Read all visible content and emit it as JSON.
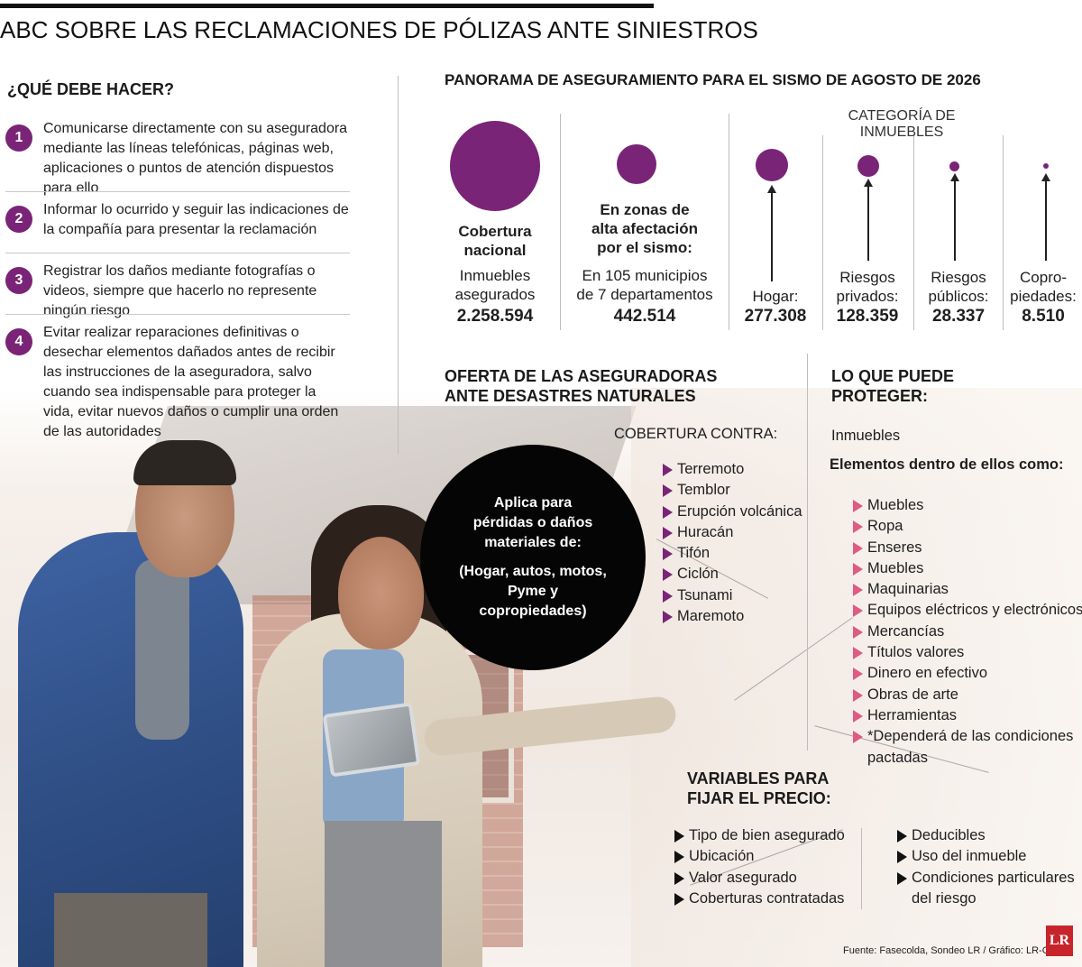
{
  "header": {
    "title": "ABC SOBRE LAS RECLAMACIONES DE PÓLIZAS ANTE SINIESTROS"
  },
  "que_hacer": {
    "title": "¿QUÉ DEBE HACER?",
    "steps": [
      {
        "num": "1",
        "text": "Comunicarse directamente con su aseguradora mediante las líneas telefónicas, páginas web, aplicaciones o puntos de atención dispuestos para ello"
      },
      {
        "num": "2",
        "text": "Informar lo ocurrido y seguir las indicaciones de la compañía para presentar la reclamación"
      },
      {
        "num": "3",
        "text": "Registrar los daños mediante fotografías o videos, siempre que hacerlo no represente ningún riesgo"
      },
      {
        "num": "4",
        "text": "Evitar realizar reparaciones definitivas o desechar elementos dañados antes de recibir las instrucciones de la aseguradora, salvo cuando sea indispensable para proteger la vida, evitar nuevos daños o cumplir una orden de las autoridades"
      }
    ]
  },
  "panorama": {
    "title": "PANORAMA DE ASEGURAMIENTO PARA EL SISMO DE AGOSTO DE 2026",
    "category_title": "CATEGORÍA DE INMUEBLES",
    "nacional": {
      "heading_1": "Cobertura",
      "heading_2": "nacional",
      "label_1": "Inmuebles",
      "label_2": "asegurados",
      "value": "2.258.594"
    },
    "zonas": {
      "heading_1": "En zonas de",
      "heading_2": "alta afectación",
      "heading_3": "por el sismo:",
      "label_1": "En 105 municipios",
      "label_2": "de 7 departamentos",
      "value": "442.514"
    },
    "categorias": [
      {
        "line_1": "",
        "line_2": "Hogar:",
        "value": "277.308",
        "amount": 277308
      },
      {
        "line_1": "Riesgos",
        "line_2": "privados:",
        "value": "128.359",
        "amount": 128359
      },
      {
        "line_1": "Riesgos",
        "line_2": "públicos:",
        "value": "28.337",
        "amount": 28337
      },
      {
        "line_1": "Copro-",
        "line_2": "piedades:",
        "value": "8.510",
        "amount": 8510
      }
    ]
  },
  "oferta": {
    "title_1": "OFERTA DE LAS ASEGURADORAS",
    "title_2": "ANTE DESASTRES NATURALES",
    "cobertura_title": "COBERTURA CONTRA:",
    "coberturas": [
      "Terremoto",
      "Temblor",
      "Erupción volcánica",
      "Huracán",
      "Tifón",
      "Ciclón",
      "Tsunami",
      "Maremoto"
    ],
    "circle": {
      "line_1": "Aplica para",
      "line_2": "pérdidas o daños",
      "line_3": "materiales de:",
      "line_4": "(Hogar, autos, motos,",
      "line_5": "Pyme y",
      "line_6": "copropiedades)"
    }
  },
  "proteger": {
    "title_1": "LO QUE PUEDE",
    "title_2": "PROTEGER:",
    "inmuebles": "Inmuebles",
    "elementos": "Elementos dentro de ellos como:",
    "items": [
      "Muebles",
      "Ropa",
      "Enseres",
      "Muebles",
      "Maquinarias",
      "Equipos eléctricos y electrónicos",
      "Mercancías",
      "Títulos valores",
      "Dinero en efectivo",
      "Obras de arte",
      "Herramientas",
      "*Dependerá de las condiciones"
    ],
    "items_tail": "pactadas"
  },
  "variables": {
    "title_1": "VARIABLES PARA",
    "title_2": "FIJAR EL PRECIO:",
    "col_1": [
      "Tipo de bien asegurado",
      "Ubicación",
      "Valor asegurado",
      "Coberturas contratadas"
    ],
    "col_2": [
      "Deducibles",
      "Uso del inmueble",
      "Condiciones particulares"
    ],
    "col_2_tail": "del riesgo"
  },
  "footer": {
    "source": "Fuente: Fasecolda, Sondeo LR / Gráfico: LR-GR",
    "logo": "LR"
  },
  "colors": {
    "accent": "#7a2478",
    "pink": "#e05a82",
    "black": "#050505"
  }
}
